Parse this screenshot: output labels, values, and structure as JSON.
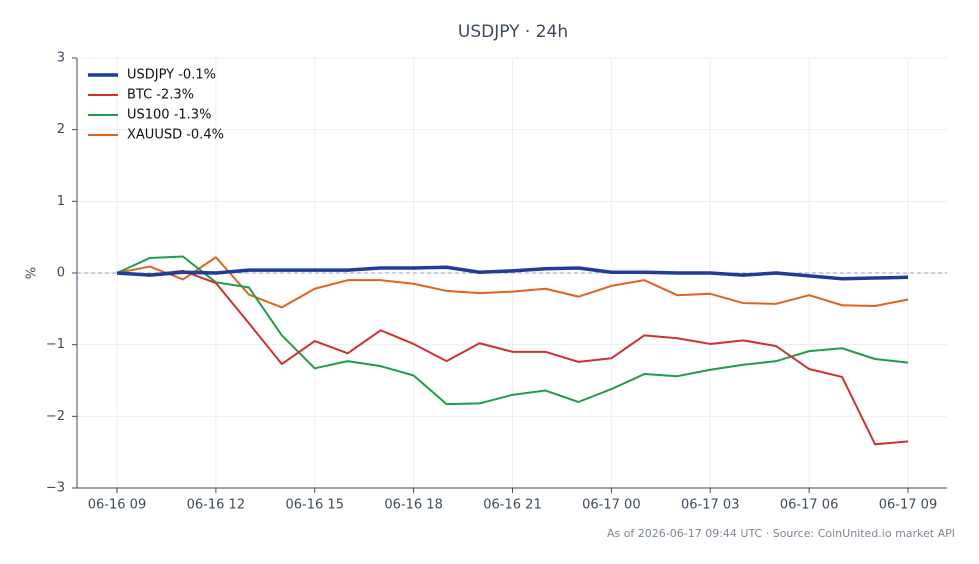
{
  "chart_data": {
    "type": "line",
    "title": "USDJPY · 24h",
    "ylabel": "%",
    "footnote": "As of 2026-06-17 09:44 UTC · Source: CoinUnited.io market API",
    "categories": [
      "06-16 09",
      null,
      null,
      "06-16 12",
      null,
      null,
      "06-16 15",
      null,
      null,
      "06-16 18",
      null,
      null,
      "06-16 21",
      null,
      null,
      "06-17 00",
      null,
      null,
      "06-17 03",
      null,
      null,
      "06-17 06",
      null,
      null,
      "06-17 09"
    ],
    "series": [
      {
        "name": "USDJPY -0.1%",
        "color": "#1f3c99",
        "width": 3.5,
        "values": [
          0,
          -0.03,
          0.01,
          0,
          0.04,
          0.04,
          0.04,
          0.04,
          0.07,
          0.07,
          0.08,
          0.01,
          0.03,
          0.06,
          0.07,
          0.01,
          0.01,
          0,
          0,
          -0.03,
          0,
          -0.04,
          -0.08,
          -0.07,
          -0.06
        ]
      },
      {
        "name": "BTC -2.3%",
        "color": "#d03030",
        "width": 2,
        "values": [
          0,
          -0.02,
          0.03,
          -0.14,
          -0.7,
          -1.27,
          -0.95,
          -1.12,
          -0.8,
          -0.99,
          -1.23,
          -0.98,
          -1.1,
          -1.1,
          -1.24,
          -1.19,
          -0.87,
          -0.91,
          -0.99,
          -0.94,
          -1.02,
          -1.34,
          -1.45,
          -2.39,
          -2.35
        ]
      },
      {
        "name": "US100 -1.3%",
        "color": "#1e9e4a",
        "width": 2,
        "values": [
          0,
          0.21,
          0.23,
          -0.13,
          -0.2,
          -0.87,
          -1.33,
          -1.23,
          -1.3,
          -1.43,
          -1.83,
          -1.82,
          -1.7,
          -1.64,
          -1.8,
          -1.62,
          -1.41,
          -1.44,
          -1.35,
          -1.28,
          -1.23,
          -1.09,
          -1.05,
          -1.2,
          -1.25
        ]
      },
      {
        "name": "XAUUSD -0.4%",
        "color": "#e0621c",
        "width": 2,
        "values": [
          0,
          0.09,
          -0.09,
          0.22,
          -0.3,
          -0.48,
          -0.22,
          -0.1,
          -0.1,
          -0.15,
          -0.25,
          -0.28,
          -0.26,
          -0.22,
          -0.33,
          -0.18,
          -0.1,
          -0.31,
          -0.29,
          -0.42,
          -0.43,
          -0.31,
          -0.45,
          -0.46,
          -0.37
        ]
      }
    ],
    "ylim": [
      -3,
      3
    ],
    "yticks": [
      {
        "value": -3,
        "label": "−3"
      },
      {
        "value": -2,
        "label": "−2"
      },
      {
        "value": -1,
        "label": "−1"
      },
      0,
      1,
      2,
      3
    ],
    "reference_line": 0,
    "grid": true,
    "legend": "upper-left"
  }
}
